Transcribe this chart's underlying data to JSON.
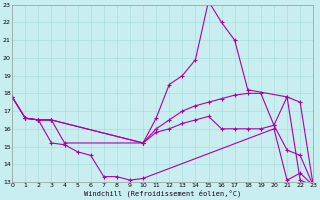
{
  "xlabel": "Windchill (Refroidissement éolien,°C)",
  "bg_color": "#c8eef0",
  "line_color": "#aa00aa",
  "grid_color": "#aadddd",
  "xmin": 0,
  "xmax": 23,
  "ymin": 13,
  "ymax": 23,
  "lines": [
    {
      "x": [
        0,
        1,
        2,
        3,
        10,
        11,
        12,
        13,
        14,
        15,
        16,
        17,
        18,
        21,
        22,
        23
      ],
      "y": [
        17.8,
        16.6,
        16.5,
        16.5,
        15.2,
        16.6,
        18.5,
        19.0,
        19.9,
        23.2,
        22.0,
        21.0,
        18.2,
        17.8,
        13.1,
        12.8
      ]
    },
    {
      "x": [
        0,
        1,
        2,
        3,
        10,
        11,
        12,
        13,
        14,
        15,
        16,
        17,
        18,
        19,
        20,
        21,
        22,
        23
      ],
      "y": [
        17.8,
        16.6,
        16.5,
        16.5,
        15.2,
        16.0,
        16.5,
        17.0,
        17.3,
        17.5,
        17.7,
        17.9,
        18.0,
        18.0,
        16.2,
        17.8,
        17.5,
        12.8
      ]
    },
    {
      "x": [
        0,
        1,
        2,
        3,
        4,
        10,
        11,
        12,
        13,
        14,
        15,
        16,
        17,
        18,
        19,
        20,
        21,
        22,
        23
      ],
      "y": [
        17.8,
        16.6,
        16.5,
        16.5,
        15.2,
        15.2,
        15.8,
        16.0,
        16.3,
        16.5,
        16.7,
        16.0,
        16.0,
        16.0,
        16.0,
        16.2,
        14.8,
        14.5,
        12.8
      ]
    },
    {
      "x": [
        1,
        2,
        3,
        4,
        5,
        6,
        7,
        8,
        9,
        10,
        20,
        21,
        22,
        23
      ],
      "y": [
        16.6,
        16.5,
        15.2,
        15.1,
        14.7,
        14.5,
        13.3,
        13.3,
        13.1,
        13.2,
        16.0,
        13.1,
        13.5,
        12.8
      ]
    }
  ]
}
